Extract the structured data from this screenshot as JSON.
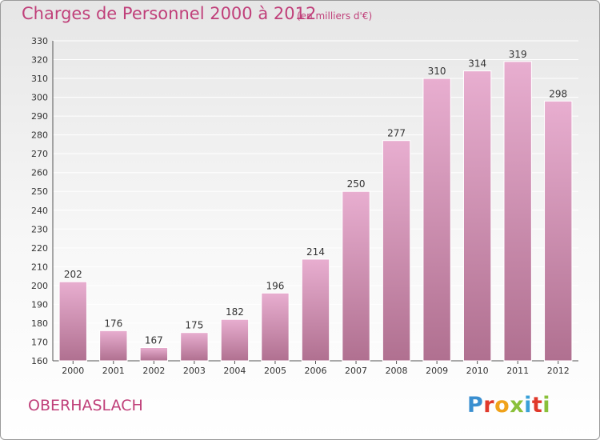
{
  "header": {
    "title": "Charges de Personnel 2000 à 2012",
    "unit": "(en milliers d'€)"
  },
  "footer": {
    "city": "OBERHASLACH",
    "logo": "Proxiti"
  },
  "colors": {
    "title": "#c0407a",
    "bar_light": "#e8aed0",
    "bar_dark": "#b07090"
  },
  "chart_data": {
    "type": "bar",
    "categories": [
      "2000",
      "2001",
      "2002",
      "2003",
      "2004",
      "2005",
      "2006",
      "2007",
      "2008",
      "2009",
      "2010",
      "2011",
      "2012"
    ],
    "values": [
      202,
      176,
      167,
      175,
      182,
      196,
      214,
      250,
      277,
      310,
      314,
      319,
      298
    ],
    "ylim": [
      160,
      330
    ],
    "yticks": [
      160,
      170,
      180,
      190,
      200,
      210,
      220,
      230,
      240,
      250,
      260,
      270,
      280,
      290,
      300,
      310,
      320,
      330
    ],
    "title": "Charges de Personnel 2000 à 2012",
    "xlabel": "",
    "ylabel": "",
    "grid": true,
    "data_labels": true
  }
}
